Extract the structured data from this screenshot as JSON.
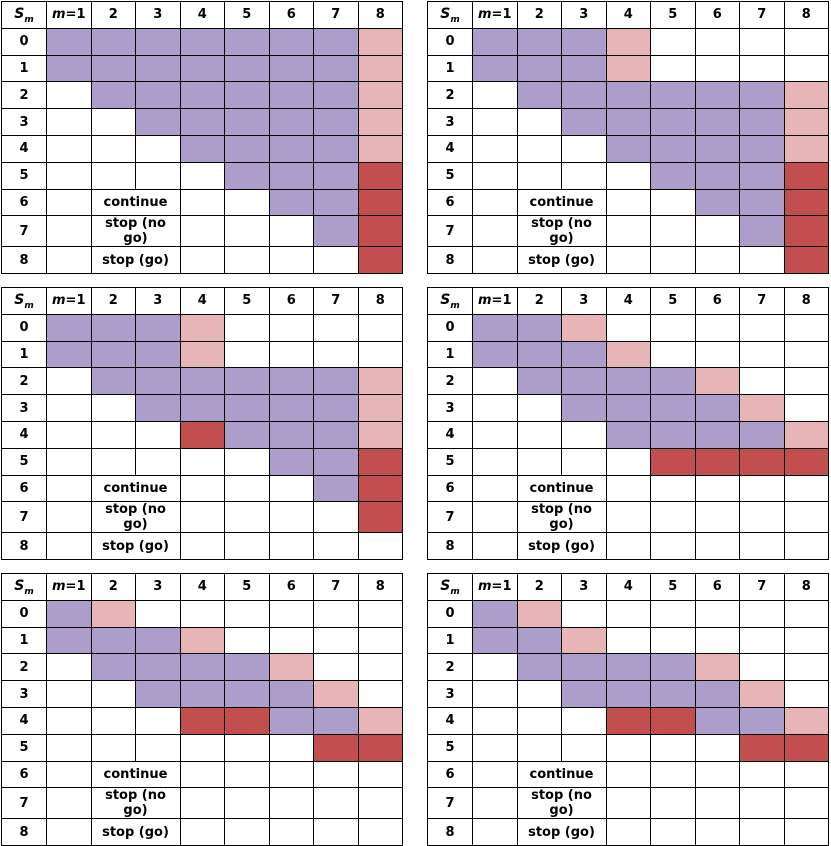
{
  "header": {
    "row_symbol": "S",
    "row_subscript": "m",
    "col_symbol": "m",
    "col_first_suffix": "=1",
    "columns": [
      "1",
      "2",
      "3",
      "4",
      "5",
      "6",
      "7",
      "8"
    ]
  },
  "rows": [
    "0",
    "1",
    "2",
    "3",
    "4",
    "5",
    "6",
    "7",
    "8"
  ],
  "legend": [
    {
      "key": "P",
      "label": "continue"
    },
    {
      "key": "L",
      "label": "stop (no go)"
    },
    {
      "key": "R",
      "label": "stop (go)"
    }
  ],
  "colors": {
    "P": "#ad9dcb",
    "L": "#e7b5b7",
    "R": "#c34e4f",
    "border": "#000000"
  },
  "panels": [
    {
      "grid": [
        "PPPPPPPL",
        "PPPPPPPL",
        ".PPPPPPL",
        "..PPPPPL",
        "...PPPPL",
        "....PPPR",
        ".....PPR",
        "......PR",
        ".......R"
      ]
    },
    {
      "grid": [
        "PPPL....",
        "PPPL....",
        ".PPPPPPL",
        "..PPPPPL",
        "...PPPPL",
        "....PPPR",
        ".....PPR",
        "......PR",
        ".......R"
      ]
    },
    {
      "grid": [
        "PPPL....",
        "PPPL....",
        ".PPPPPPL",
        "..PPPPPL",
        "...RPPPL",
        ".....PPR",
        "......PR",
        ".......R",
        "........"
      ]
    },
    {
      "grid": [
        "PPL.....",
        "PPPL....",
        ".PPPPL..",
        "..PPPPL.",
        "...PPPPL",
        "....RRRR",
        "........",
        "........",
        "........"
      ]
    },
    {
      "grid": [
        "PL......",
        "PPPL....",
        ".PPPPL..",
        "..PPPPL.",
        "...RRPPL",
        "......RR",
        "........",
        "........",
        "........"
      ]
    },
    {
      "grid": [
        "PL......",
        "PPL.....",
        ".PPPPL..",
        "..PPPPL.",
        "...RRPPL",
        "......RR",
        "........",
        "........",
        "........"
      ]
    }
  ]
}
